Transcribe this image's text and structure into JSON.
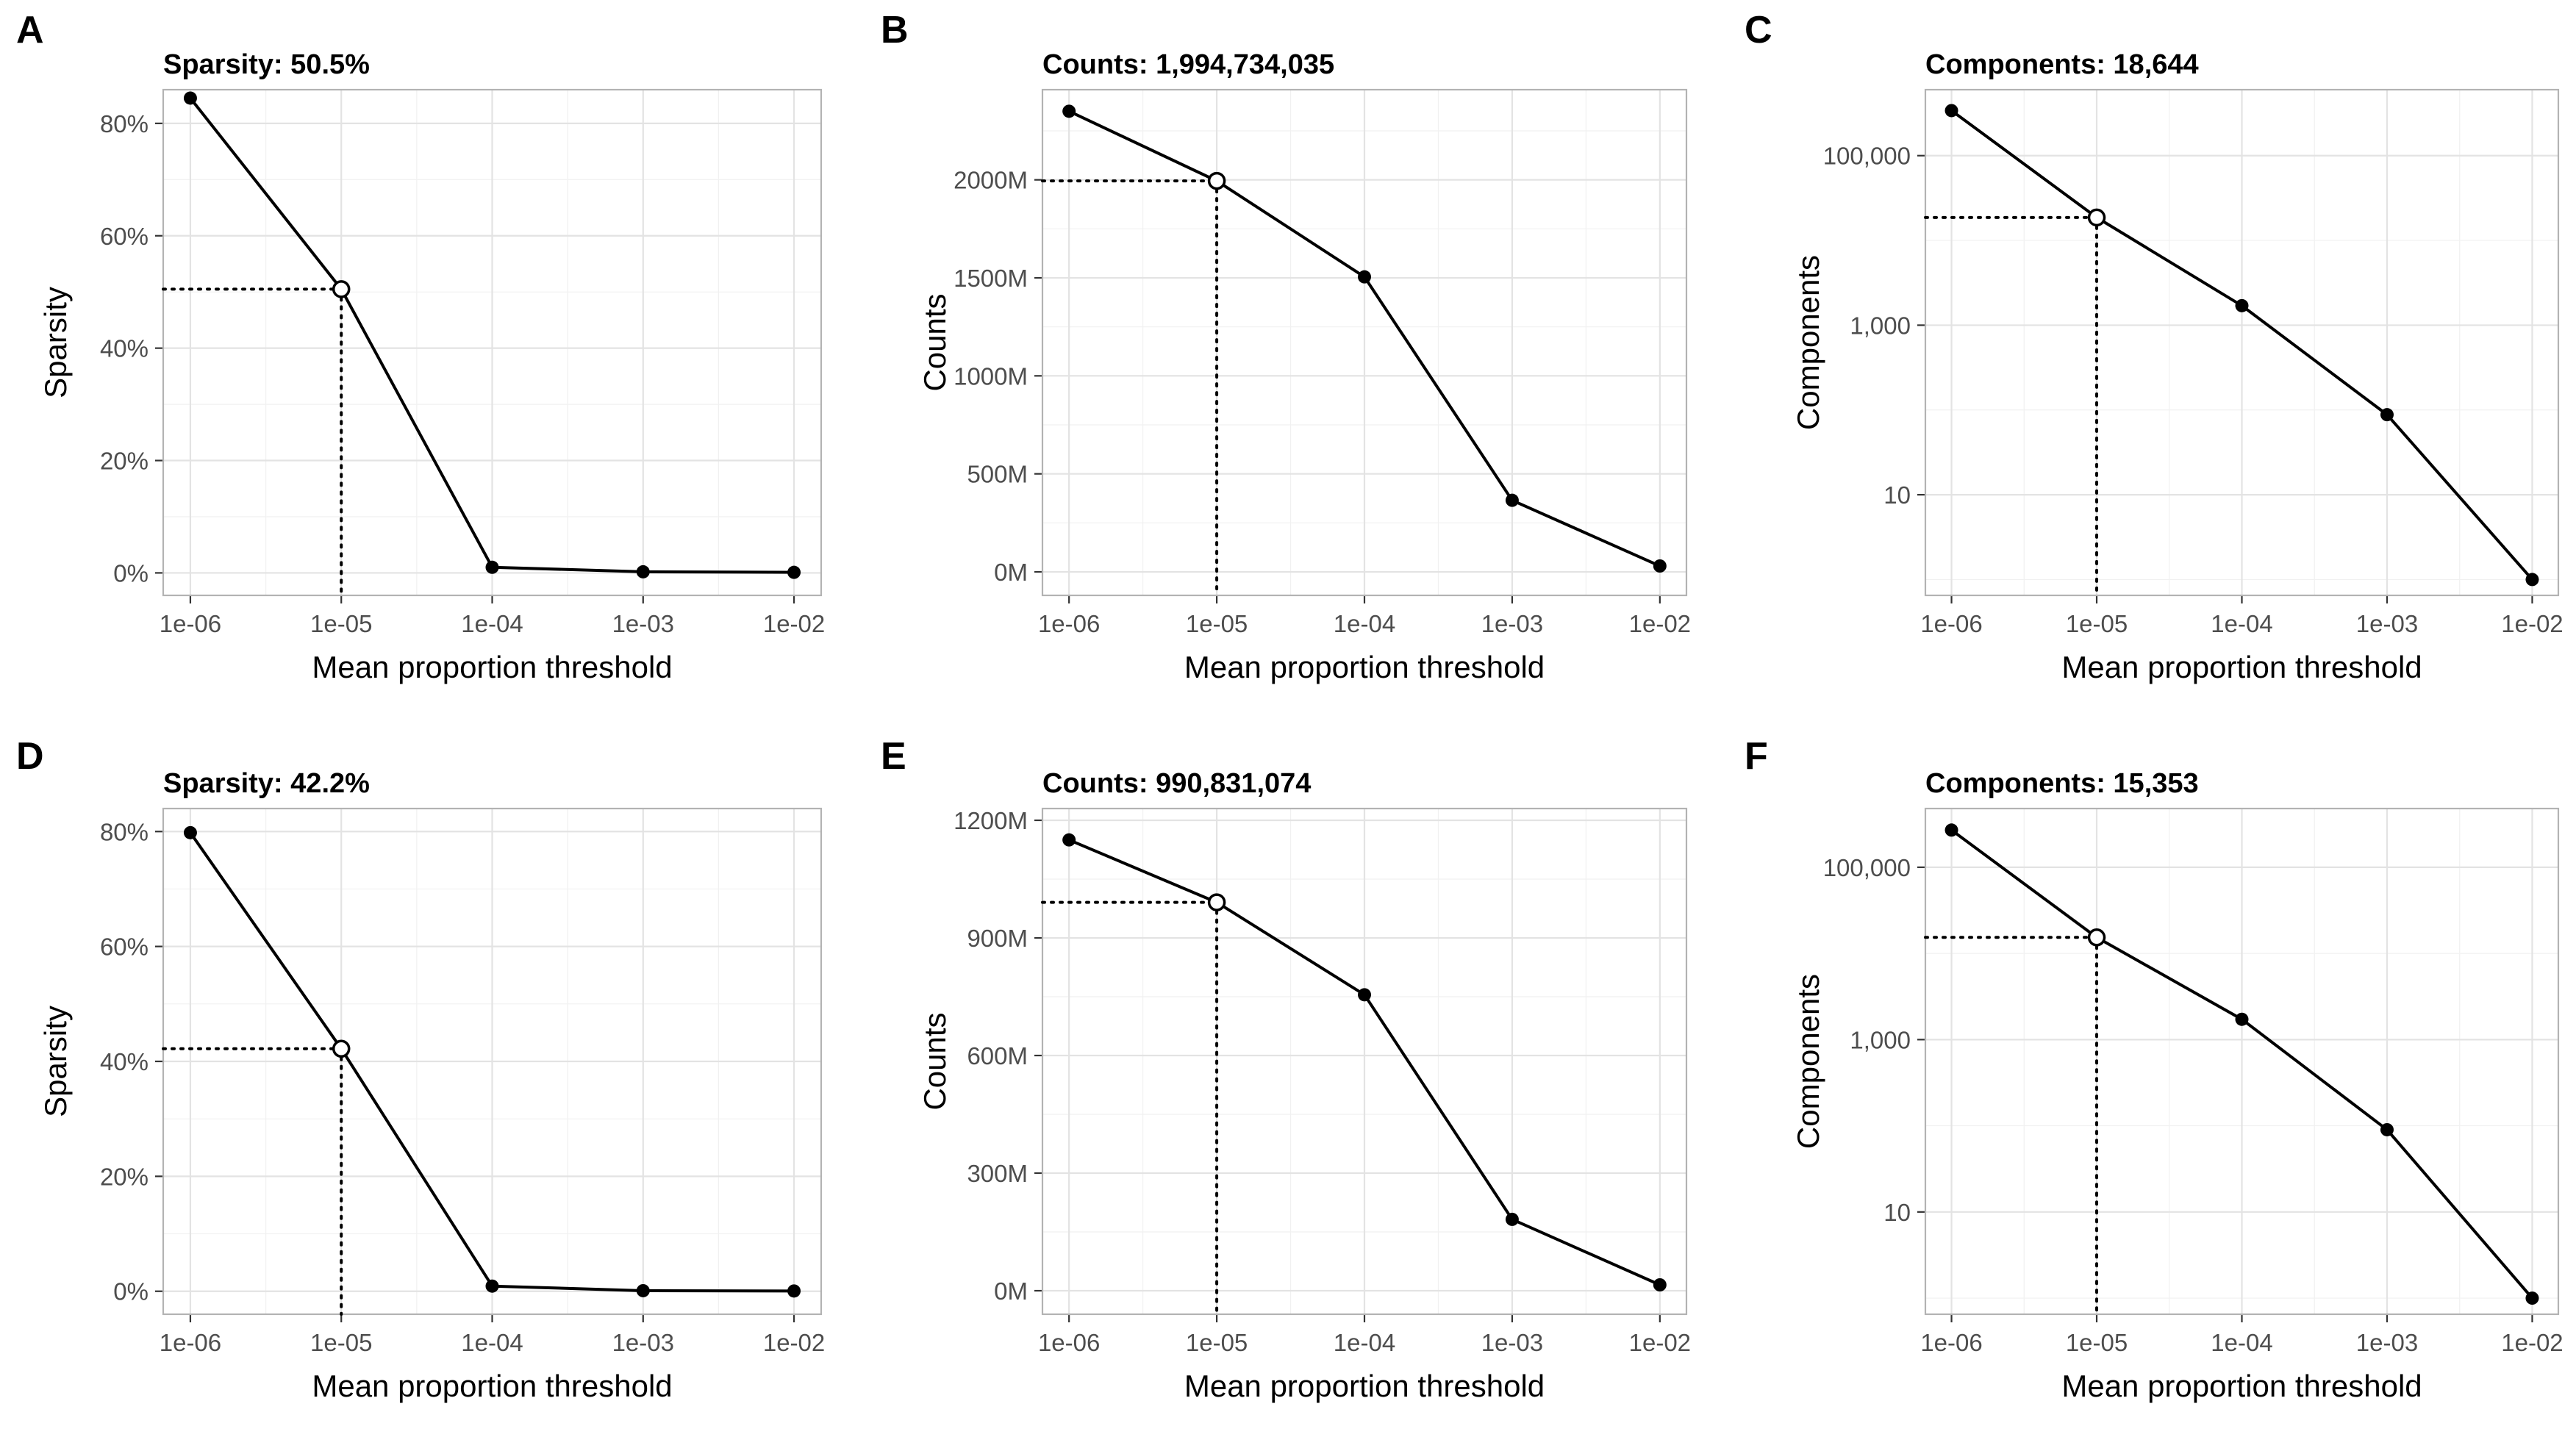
{
  "chart_data": [
    {
      "panel": "A",
      "type": "line",
      "title": "Sparsity: 50.5%",
      "xlabel": "Mean proportion threshold",
      "ylabel": "Sparsity",
      "x_scale": "log10",
      "x": [
        1e-06,
        1e-05,
        0.0001,
        0.001,
        0.01
      ],
      "x_ticks": [
        "1e-06",
        "1e-05",
        "1e-04",
        "1e-03",
        "1e-02"
      ],
      "y_scale": "linear",
      "ylim": [
        -4,
        86
      ],
      "y_ticks": [
        0,
        20,
        40,
        60,
        80
      ],
      "y_tick_labels": [
        "0%",
        "20%",
        "40%",
        "60%",
        "80%"
      ],
      "values": [
        84.5,
        50.5,
        1.0,
        0.2,
        0.1
      ],
      "highlight": {
        "x": 1e-05,
        "y": 50.5
      },
      "grid": true
    },
    {
      "panel": "B",
      "type": "line",
      "title": "Counts: 1,994,734,035",
      "xlabel": "Mean proportion threshold",
      "ylabel": "Counts",
      "x_scale": "log10",
      "x": [
        1e-06,
        1e-05,
        0.0001,
        0.001,
        0.01
      ],
      "x_ticks": [
        "1e-06",
        "1e-05",
        "1e-04",
        "1e-03",
        "1e-02"
      ],
      "y_scale": "linear",
      "ylim": [
        -120,
        2460
      ],
      "y_ticks": [
        0,
        500,
        1000,
        1500,
        2000
      ],
      "y_tick_labels": [
        "0M",
        "500M",
        "1000M",
        "1500M",
        "2000M"
      ],
      "values": [
        2350,
        1994.7,
        1505,
        365,
        30
      ],
      "highlight": {
        "x": 1e-05,
        "y": 1994.7
      },
      "grid": true
    },
    {
      "panel": "C",
      "type": "line",
      "title": "Components: 18,644",
      "xlabel": "Mean proportion threshold",
      "ylabel": "Components",
      "x_scale": "log10",
      "x": [
        1e-06,
        1e-05,
        0.0001,
        0.001,
        0.01
      ],
      "x_ticks": [
        "1e-06",
        "1e-05",
        "1e-04",
        "1e-03",
        "1e-02"
      ],
      "y_scale": "log10",
      "ylim": [
        0.65,
        600000
      ],
      "y_ticks": [
        10,
        1000,
        100000
      ],
      "y_tick_labels": [
        "10",
        "1,000",
        "100,000"
      ],
      "values": [
        340000,
        18644,
        1700,
        88,
        1
      ],
      "highlight": {
        "x": 1e-05,
        "y": 18644
      },
      "grid": true
    },
    {
      "panel": "D",
      "type": "line",
      "title": "Sparsity: 42.2%",
      "xlabel": "Mean proportion threshold",
      "ylabel": "Sparsity",
      "x_scale": "log10",
      "x": [
        1e-06,
        1e-05,
        0.0001,
        0.001,
        0.01
      ],
      "x_ticks": [
        "1e-06",
        "1e-05",
        "1e-04",
        "1e-03",
        "1e-02"
      ],
      "y_scale": "linear",
      "ylim": [
        -4,
        84
      ],
      "y_ticks": [
        0,
        20,
        40,
        60,
        80
      ],
      "y_tick_labels": [
        "0%",
        "20%",
        "40%",
        "60%",
        "80%"
      ],
      "values": [
        79.8,
        42.2,
        0.9,
        0.1,
        0.05
      ],
      "highlight": {
        "x": 1e-05,
        "y": 42.2
      },
      "grid": true
    },
    {
      "panel": "E",
      "type": "line",
      "title": "Counts: 990,831,074",
      "xlabel": "Mean proportion threshold",
      "ylabel": "Counts",
      "x_scale": "log10",
      "x": [
        1e-06,
        1e-05,
        0.0001,
        0.001,
        0.01
      ],
      "x_ticks": [
        "1e-06",
        "1e-05",
        "1e-04",
        "1e-03",
        "1e-02"
      ],
      "y_scale": "linear",
      "ylim": [
        -60,
        1230
      ],
      "y_ticks": [
        0,
        300,
        600,
        900,
        1200
      ],
      "y_tick_labels": [
        "0M",
        "300M",
        "600M",
        "900M",
        "1200M"
      ],
      "values": [
        1150,
        990.8,
        755,
        182,
        15
      ],
      "highlight": {
        "x": 1e-05,
        "y": 990.8
      },
      "grid": true
    },
    {
      "panel": "F",
      "type": "line",
      "title": "Components: 15,353",
      "xlabel": "Mean proportion threshold",
      "ylabel": "Components",
      "x_scale": "log10",
      "x": [
        1e-06,
        1e-05,
        0.0001,
        0.001,
        0.01
      ],
      "x_ticks": [
        "1e-06",
        "1e-05",
        "1e-04",
        "1e-03",
        "1e-02"
      ],
      "y_scale": "log10",
      "ylim": [
        0.65,
        480000
      ],
      "y_ticks": [
        10,
        1000,
        100000
      ],
      "y_tick_labels": [
        "10",
        "1,000",
        "100,000"
      ],
      "values": [
        270000,
        15353,
        1720,
        90,
        1
      ],
      "highlight": {
        "x": 1e-05,
        "y": 15353
      },
      "grid": true
    }
  ]
}
